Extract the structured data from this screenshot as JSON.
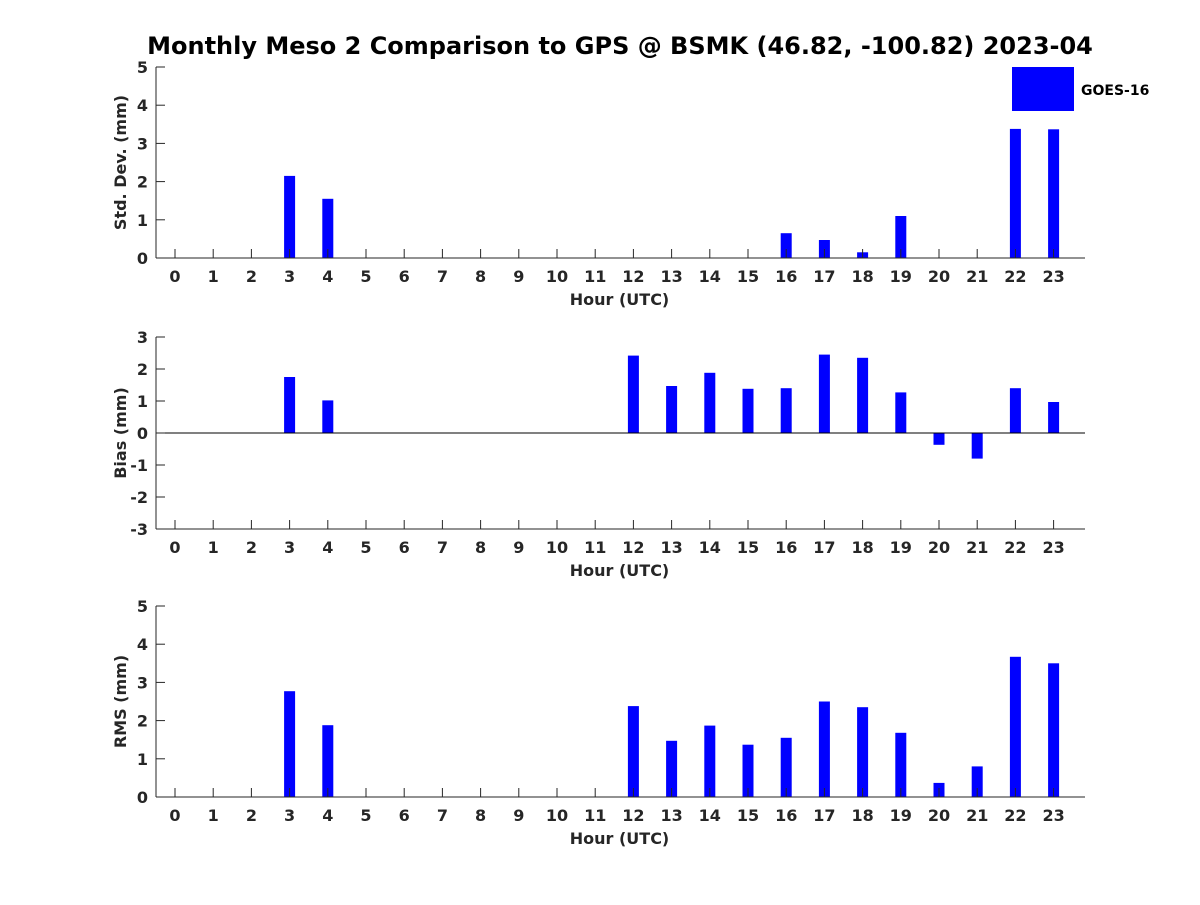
{
  "title": "Monthly Meso 2 Comparison to GPS @ BSMK (46.82, -100.82) 2023-04",
  "colors": {
    "bar": "#0000ff",
    "axis": "#262626",
    "zero_line": "#000000"
  },
  "legend": {
    "label": "GOES-16",
    "placement": "top-right"
  },
  "chart_data": [
    {
      "type": "bar",
      "xlabel": "Hour (UTC)",
      "ylabel": "Std. Dev. (mm)",
      "ylim": [
        0,
        5
      ],
      "yticks": [
        0,
        1,
        2,
        3,
        4,
        5
      ],
      "categories": [
        "0",
        "1",
        "2",
        "3",
        "4",
        "5",
        "6",
        "7",
        "8",
        "9",
        "10",
        "11",
        "12",
        "13",
        "14",
        "15",
        "16",
        "17",
        "18",
        "19",
        "20",
        "21",
        "22",
        "23"
      ],
      "series": [
        {
          "name": "GOES-16",
          "values": [
            null,
            null,
            null,
            2.15,
            1.55,
            null,
            null,
            null,
            null,
            null,
            null,
            null,
            0,
            0,
            0,
            0,
            0.65,
            0.47,
            0.15,
            1.1,
            0,
            0,
            3.38,
            3.37
          ]
        }
      ],
      "grid": false
    },
    {
      "type": "bar",
      "xlabel": "Hour (UTC)",
      "ylabel": "Bias (mm)",
      "ylim": [
        -3,
        3
      ],
      "yticks": [
        -3,
        -2,
        -1,
        0,
        1,
        2,
        3
      ],
      "categories": [
        "0",
        "1",
        "2",
        "3",
        "4",
        "5",
        "6",
        "7",
        "8",
        "9",
        "10",
        "11",
        "12",
        "13",
        "14",
        "15",
        "16",
        "17",
        "18",
        "19",
        "20",
        "21",
        "22",
        "23"
      ],
      "series": [
        {
          "name": "GOES-16",
          "values": [
            null,
            null,
            null,
            1.75,
            1.02,
            null,
            null,
            null,
            null,
            null,
            null,
            null,
            2.42,
            1.47,
            1.88,
            1.38,
            1.4,
            2.45,
            2.35,
            1.27,
            -0.37,
            -0.8,
            1.4,
            0.97
          ]
        }
      ],
      "zero_line": true,
      "grid": false
    },
    {
      "type": "bar",
      "xlabel": "Hour (UTC)",
      "ylabel": "RMS (mm)",
      "ylim": [
        0,
        5
      ],
      "yticks": [
        0,
        1,
        2,
        3,
        4,
        5
      ],
      "categories": [
        "0",
        "1",
        "2",
        "3",
        "4",
        "5",
        "6",
        "7",
        "8",
        "9",
        "10",
        "11",
        "12",
        "13",
        "14",
        "15",
        "16",
        "17",
        "18",
        "19",
        "20",
        "21",
        "22",
        "23"
      ],
      "series": [
        {
          "name": "GOES-16",
          "values": [
            null,
            null,
            null,
            2.77,
            1.88,
            null,
            null,
            null,
            null,
            null,
            null,
            null,
            2.38,
            1.47,
            1.87,
            1.37,
            1.55,
            2.5,
            2.35,
            1.68,
            0.37,
            0.8,
            3.67,
            3.5
          ]
        }
      ],
      "grid": false
    }
  ]
}
